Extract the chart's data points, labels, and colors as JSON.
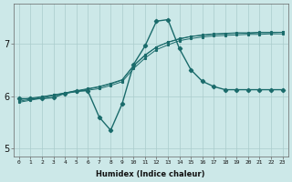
{
  "xlabel": "Humidex (Indice chaleur)",
  "bg_color": "#cce8e8",
  "line_color": "#1a6b6b",
  "grid_color": "#aacccc",
  "x_values": [
    0,
    1,
    2,
    3,
    4,
    5,
    6,
    7,
    8,
    9,
    10,
    11,
    12,
    13,
    14,
    15,
    16,
    17,
    18,
    19,
    20,
    21,
    22,
    23
  ],
  "curve1": [
    5.95,
    5.95,
    5.95,
    5.97,
    6.05,
    6.1,
    6.1,
    5.6,
    5.35,
    5.85,
    6.6,
    6.95,
    7.42,
    7.45,
    6.9,
    6.5,
    6.28,
    6.18,
    6.12,
    6.12,
    6.12,
    6.12,
    6.12,
    6.12
  ],
  "curve2": [
    5.93,
    5.96,
    5.99,
    6.02,
    6.05,
    6.08,
    6.11,
    6.14,
    6.2,
    6.27,
    6.52,
    6.72,
    6.88,
    6.97,
    7.05,
    7.09,
    7.12,
    7.14,
    7.15,
    7.16,
    7.17,
    7.17,
    7.18,
    7.18
  ],
  "curve3": [
    5.9,
    5.94,
    5.98,
    6.02,
    6.06,
    6.1,
    6.14,
    6.18,
    6.24,
    6.31,
    6.58,
    6.78,
    6.93,
    7.02,
    7.08,
    7.13,
    7.15,
    7.17,
    7.18,
    7.19,
    7.19,
    7.2,
    7.2,
    7.21
  ],
  "curve4": [
    5.88,
    5.92,
    5.96,
    6.01,
    6.05,
    6.09,
    6.13,
    6.17,
    6.23,
    6.3,
    6.57,
    6.77,
    6.93,
    7.02,
    7.09,
    7.13,
    7.16,
    7.18,
    7.19,
    7.2,
    7.2,
    7.21,
    7.21,
    7.21
  ],
  "ylim": [
    4.85,
    7.75
  ],
  "xlim": [
    -0.5,
    23.5
  ],
  "yticks": [
    5,
    6,
    7
  ],
  "xticks": [
    0,
    1,
    2,
    3,
    4,
    5,
    6,
    7,
    8,
    9,
    10,
    11,
    12,
    13,
    14,
    15,
    16,
    17,
    18,
    19,
    20,
    21,
    22,
    23
  ],
  "xtick_labels": [
    "0",
    "1",
    "2",
    "3",
    "4",
    "5",
    "6",
    "7",
    "8",
    "9",
    "10",
    "11",
    "12",
    "13",
    "14",
    "15",
    "16",
    "17",
    "18",
    "19",
    "20",
    "21",
    "22",
    "23"
  ]
}
